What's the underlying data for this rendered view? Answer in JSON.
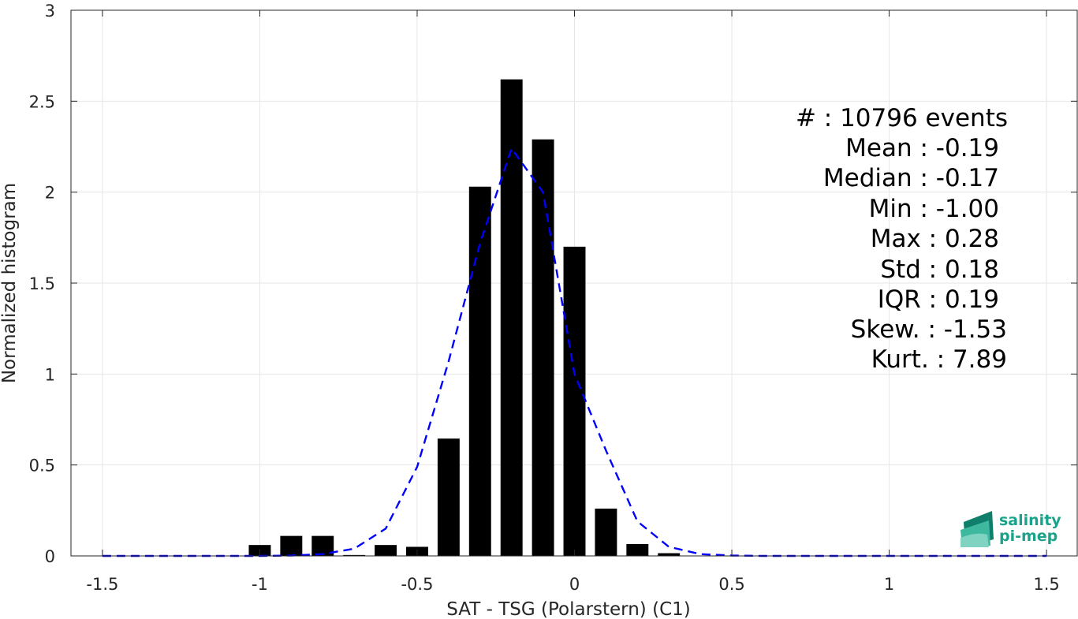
{
  "chart_data": {
    "type": "bar",
    "xlabel": "SAT - TSG (Polarstern) (C1)",
    "ylabel": "Normalized histogram",
    "xlim": [
      -1.6,
      1.6
    ],
    "ylim": [
      0,
      3
    ],
    "grid": true,
    "xticks": [
      -1.5,
      -1,
      -0.5,
      0,
      0.5,
      1,
      1.5
    ],
    "xtick_labels": [
      "-1.5",
      "-1",
      "-0.5",
      "0",
      "0.5",
      "1",
      "1.5"
    ],
    "yticks": [
      0,
      0.5,
      1,
      1.5,
      2,
      2.5,
      3
    ],
    "ytick_labels": [
      "0",
      "0.5",
      "1",
      "1.5",
      "2",
      "2.5",
      "3"
    ],
    "bar_width": 0.07,
    "bars": {
      "x": [
        -1.0,
        -0.9,
        -0.8,
        -0.7,
        -0.6,
        -0.5,
        -0.4,
        -0.3,
        -0.2,
        -0.1,
        0.0,
        0.1,
        0.2,
        0.3
      ],
      "values": [
        0.06,
        0.11,
        0.11,
        0.005,
        0.06,
        0.05,
        0.645,
        2.03,
        2.62,
        2.29,
        1.7,
        0.26,
        0.065,
        0.015
      ],
      "color": "#000000"
    },
    "fit_line": {
      "style": "dashed",
      "color": "#0000ff",
      "x": [
        -1.5,
        -1.4,
        -1.3,
        -1.2,
        -1.1,
        -1.0,
        -0.9,
        -0.8,
        -0.7,
        -0.6,
        -0.5,
        -0.4,
        -0.3,
        -0.2,
        -0.1,
        0.0,
        0.1,
        0.2,
        0.3,
        0.4,
        0.5,
        0.6,
        0.7,
        0.8,
        0.9,
        1.0,
        1.1,
        1.2,
        1.3,
        1.4,
        1.5
      ],
      "y": [
        0,
        0,
        0,
        0,
        0,
        0,
        0.002,
        0.01,
        0.04,
        0.15,
        0.49,
        1.07,
        1.72,
        2.24,
        2.0,
        1.0,
        0.58,
        0.19,
        0.05,
        0.01,
        0.002,
        0,
        0,
        0,
        0,
        0,
        0,
        0,
        0,
        0,
        0
      ]
    },
    "annotations": [
      "#  : 10796 events",
      "Mean : -0.19",
      "Median : -0.17",
      "Min : -1.00",
      "Max : 0.28",
      "Std : 0.18",
      "IQR : 0.19",
      "Skew. : -1.53",
      "Kurt. : 7.89"
    ]
  },
  "logo": {
    "line1": "salinity",
    "line2": "pi-mep",
    "colors": {
      "text": "#1aa38a",
      "mark_dark": "#0f7f6c",
      "mark_light": "#7fd3c0"
    }
  }
}
